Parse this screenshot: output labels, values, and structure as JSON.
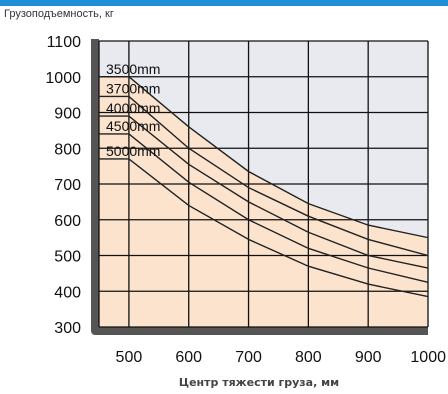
{
  "header_color": "#1e8fd6",
  "chart_data": {
    "type": "line",
    "ylabel": "Грузоподъемность, кг",
    "xlabel": "Центр тяжести груза, мм",
    "x": [
      500,
      600,
      700,
      800,
      900,
      1000
    ],
    "xlim": [
      450,
      1000
    ],
    "ylim": [
      300,
      1100
    ],
    "yticks": [
      300,
      400,
      500,
      600,
      700,
      800,
      900,
      1000,
      1100
    ],
    "xticks": [
      500,
      600,
      700,
      800,
      900,
      1000
    ],
    "grid": true,
    "series": [
      {
        "name": "3500mm",
        "values": [
          1000,
          860,
          735,
          645,
          585,
          550
        ]
      },
      {
        "name": "3700mm",
        "values": [
          945,
          800,
          690,
          610,
          545,
          500
        ]
      },
      {
        "name": "4000mm",
        "values": [
          890,
          755,
          650,
          565,
          500,
          465
        ]
      },
      {
        "name": "4500mm",
        "values": [
          840,
          705,
          600,
          520,
          465,
          425
        ]
      },
      {
        "name": "5000mm",
        "values": [
          770,
          640,
          545,
          470,
          420,
          385
        ]
      }
    ],
    "colors": {
      "safe_area": "#fbe3cd",
      "unsafe_area": "#e8eaef",
      "frame": "#555555",
      "line": "#222222"
    }
  }
}
